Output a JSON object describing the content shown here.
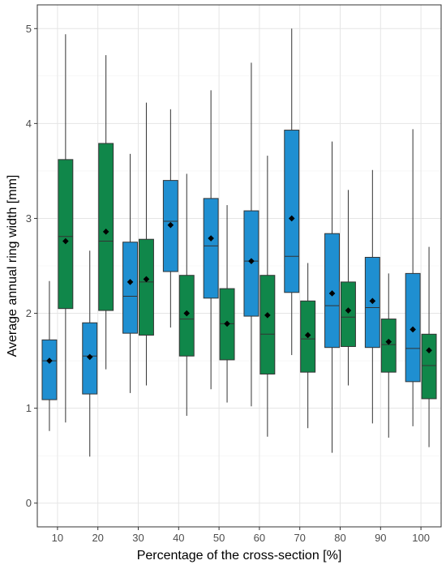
{
  "chart_data": {
    "type": "boxplot",
    "title": "",
    "xlabel": "Percentage of the cross-section [%]",
    "ylabel": "Average annual ring width [mm]",
    "ylim": [
      -0.25,
      5.25
    ],
    "yticks": [
      0,
      1,
      2,
      3,
      4,
      5
    ],
    "categories": [
      "10",
      "20",
      "30",
      "40",
      "50",
      "60",
      "70",
      "80",
      "90",
      "100"
    ],
    "grid": true,
    "legend": "none",
    "series": [
      {
        "color": "#1f8fd1",
        "boxes": [
          {
            "min": 0.76,
            "q1": 1.09,
            "median": 1.5,
            "q3": 1.72,
            "max": 2.34,
            "mean": 1.5
          },
          {
            "min": 0.49,
            "q1": 1.15,
            "median": 1.55,
            "q3": 1.9,
            "max": 2.66,
            "mean": 1.54
          },
          {
            "min": 1.16,
            "q1": 1.79,
            "median": 2.18,
            "q3": 2.75,
            "max": 3.68,
            "mean": 2.33
          },
          {
            "min": 1.85,
            "q1": 2.44,
            "median": 2.97,
            "q3": 3.4,
            "max": 4.15,
            "mean": 2.93
          },
          {
            "min": 1.2,
            "q1": 2.16,
            "median": 2.71,
            "q3": 3.21,
            "max": 4.35,
            "mean": 2.79
          },
          {
            "min": 1.02,
            "q1": 1.97,
            "median": 2.55,
            "q3": 3.08,
            "max": 4.64,
            "mean": 2.55
          },
          {
            "min": 1.56,
            "q1": 2.22,
            "median": 2.6,
            "q3": 3.93,
            "max": 5.0,
            "mean": 3.0
          },
          {
            "min": 0.53,
            "q1": 1.64,
            "median": 2.08,
            "q3": 2.84,
            "max": 3.81,
            "mean": 2.21
          },
          {
            "min": 0.84,
            "q1": 1.64,
            "median": 2.06,
            "q3": 2.59,
            "max": 3.51,
            "mean": 2.13
          },
          {
            "min": 0.81,
            "q1": 1.28,
            "median": 1.63,
            "q3": 2.42,
            "max": 3.94,
            "mean": 1.83
          }
        ]
      },
      {
        "color": "#10874a",
        "boxes": [
          {
            "min": 0.85,
            "q1": 2.05,
            "median": 2.81,
            "q3": 3.62,
            "max": 4.94,
            "mean": 2.76
          },
          {
            "min": 1.41,
            "q1": 2.03,
            "median": 2.76,
            "q3": 3.79,
            "max": 4.72,
            "mean": 2.86
          },
          {
            "min": 1.24,
            "q1": 1.77,
            "median": 2.33,
            "q3": 2.78,
            "max": 4.22,
            "mean": 2.36
          },
          {
            "min": 0.92,
            "q1": 1.55,
            "median": 1.94,
            "q3": 2.4,
            "max": 3.47,
            "mean": 2.0
          },
          {
            "min": 1.06,
            "q1": 1.51,
            "median": 1.89,
            "q3": 2.26,
            "max": 3.14,
            "mean": 1.89
          },
          {
            "min": 0.7,
            "q1": 1.36,
            "median": 1.78,
            "q3": 2.4,
            "max": 3.66,
            "mean": 1.98
          },
          {
            "min": 0.79,
            "q1": 1.38,
            "median": 1.73,
            "q3": 2.13,
            "max": 2.53,
            "mean": 1.77
          },
          {
            "min": 1.24,
            "q1": 1.65,
            "median": 1.96,
            "q3": 2.33,
            "max": 3.3,
            "mean": 2.03
          },
          {
            "min": 0.69,
            "q1": 1.38,
            "median": 1.67,
            "q3": 1.94,
            "max": 2.42,
            "mean": 1.7
          },
          {
            "min": 0.59,
            "q1": 1.1,
            "median": 1.45,
            "q3": 1.78,
            "max": 2.7,
            "mean": 1.61
          }
        ]
      }
    ]
  }
}
